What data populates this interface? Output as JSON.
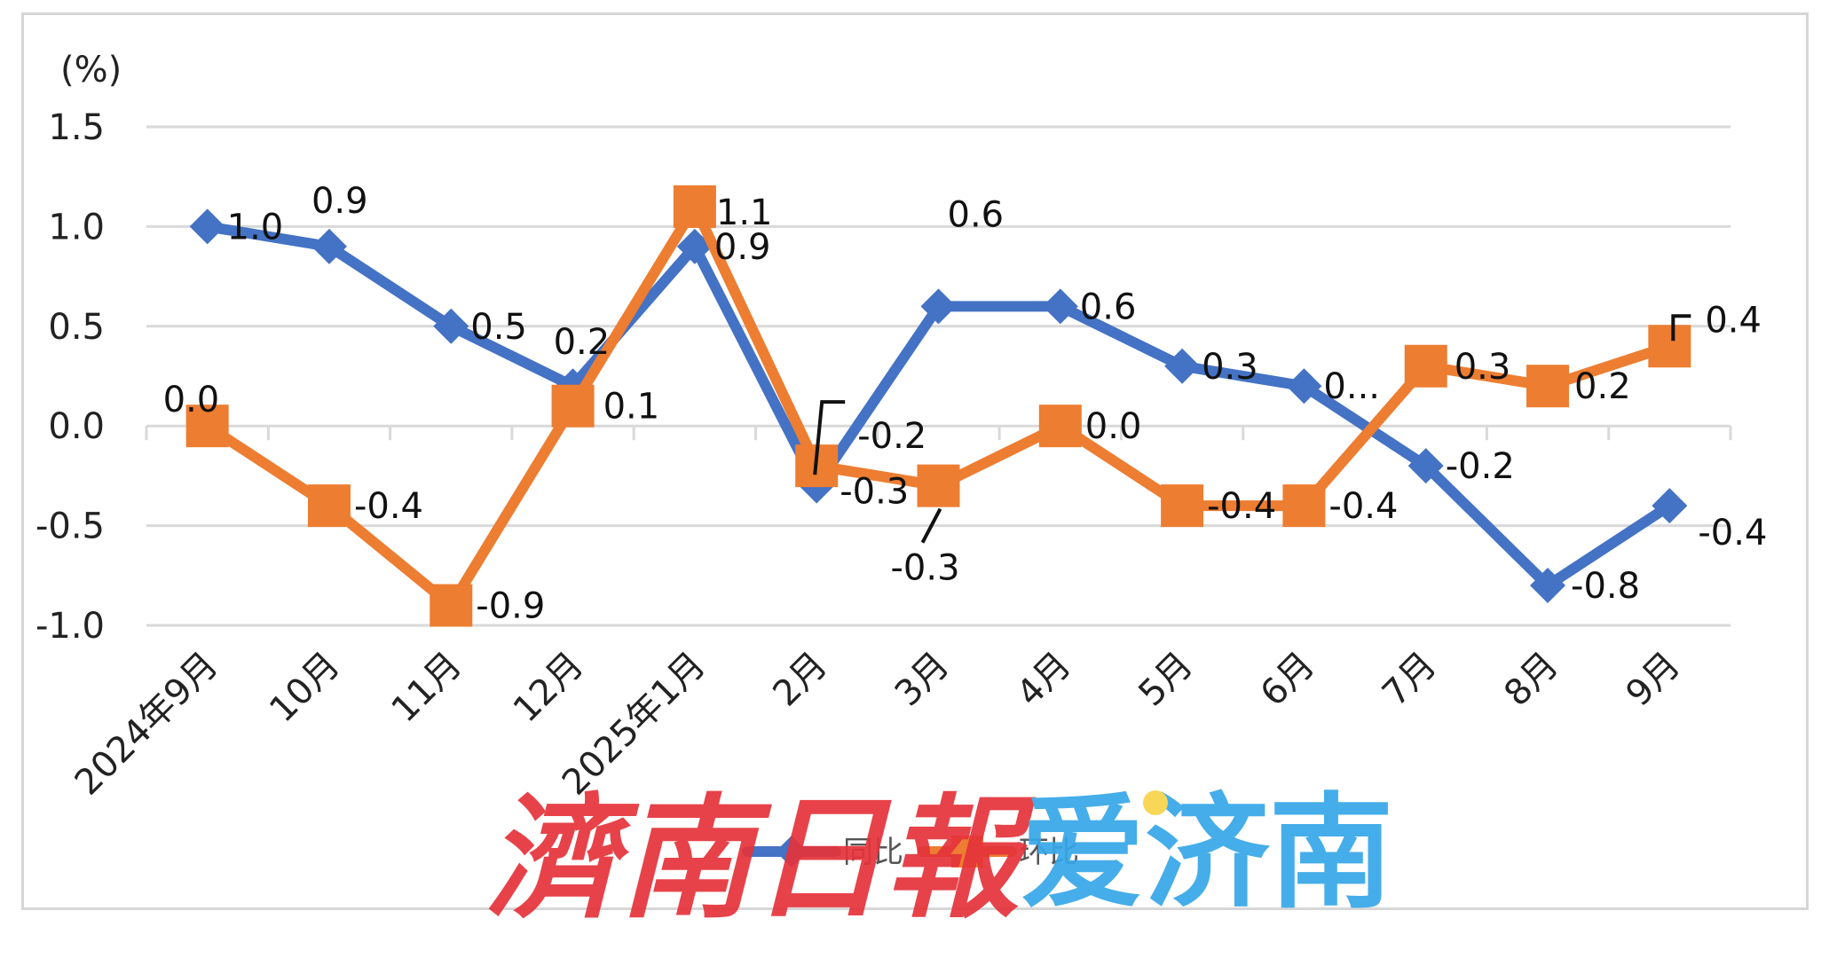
{
  "chart_data": {
    "type": "line",
    "ylabel": "(%)",
    "ylim": [
      -1.0,
      1.5
    ],
    "yticks": [
      "1.5",
      "1.0",
      "0.5",
      "0.0",
      "-0.5",
      "-1.0"
    ],
    "grid": true,
    "legend_position": "bottom",
    "categories": [
      "2024年9月",
      "10月",
      "11月",
      "12月",
      "2025年1月",
      "2月",
      "3月",
      "4月",
      "5月",
      "6月",
      "7月",
      "8月",
      "9月"
    ],
    "series": [
      {
        "name": "同比",
        "color": "#4472c4",
        "marker": "diamond",
        "values": [
          1.0,
          0.9,
          0.5,
          0.2,
          0.9,
          -0.3,
          0.6,
          0.6,
          0.3,
          0.2,
          -0.2,
          -0.8,
          -0.4
        ],
        "labels": [
          "1.0",
          "0.9",
          "0.5",
          "0.2",
          "0.9",
          "-0.3",
          "0.6",
          "0.6",
          "0.3",
          "0...",
          "-0.2",
          "-0.8",
          "-0.4"
        ]
      },
      {
        "name": "环比",
        "color": "#ed7d31",
        "marker": "square",
        "values": [
          0.0,
          -0.4,
          -0.9,
          0.1,
          1.1,
          -0.2,
          -0.3,
          0.0,
          -0.4,
          -0.4,
          0.3,
          0.2,
          0.4
        ],
        "labels": [
          "0.0",
          "-0.4",
          "-0.9",
          "0.1",
          "1.1",
          "-0.2",
          "-0.3",
          "0.0",
          "-0.4",
          "-0.4",
          "0.3",
          "0.2",
          "0.4"
        ]
      }
    ]
  },
  "watermark": {
    "text_left": "濟南日報",
    "text_right": "爱济南",
    "color_left": "#e5333a",
    "color_right": "#36a7e8"
  }
}
